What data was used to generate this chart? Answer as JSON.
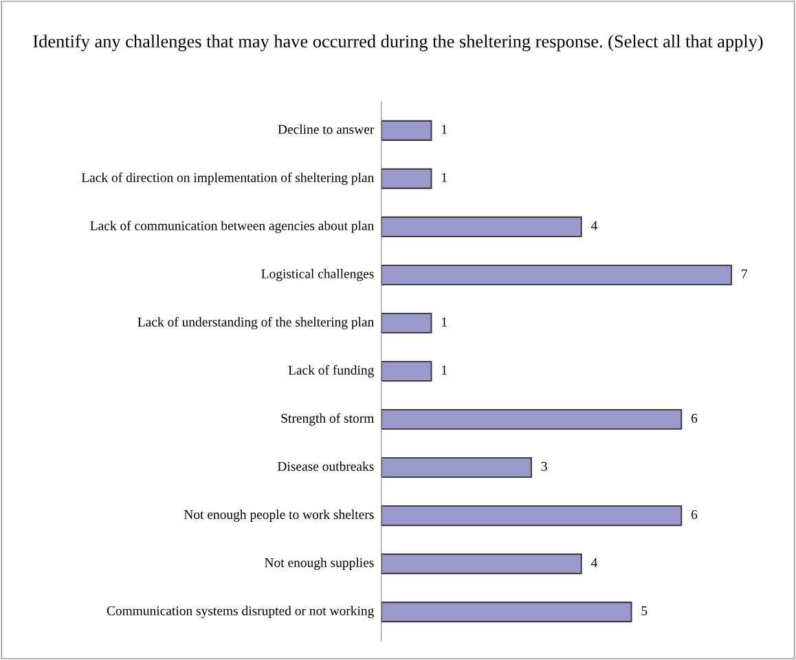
{
  "chart_data": {
    "type": "bar",
    "orientation": "horizontal",
    "title": "Identify any challenges that may have occurred during the sheltering response. (Select all that apply)",
    "categories": [
      "Decline to answer",
      "Lack of direction on implementation of sheltering plan",
      "Lack of communication between agencies about plan",
      "Logistical challenges",
      "Lack of understanding of the sheltering plan",
      "Lack of funding",
      "Strength of storm",
      "Disease outbreaks",
      "Not enough people to work shelters",
      "Not enough supplies",
      "Communication systems disrupted or not working"
    ],
    "values": [
      1,
      1,
      4,
      7,
      1,
      1,
      6,
      3,
      6,
      4,
      5
    ],
    "color": "#9999cc",
    "data_labels": true,
    "grid": false,
    "legend": false
  }
}
